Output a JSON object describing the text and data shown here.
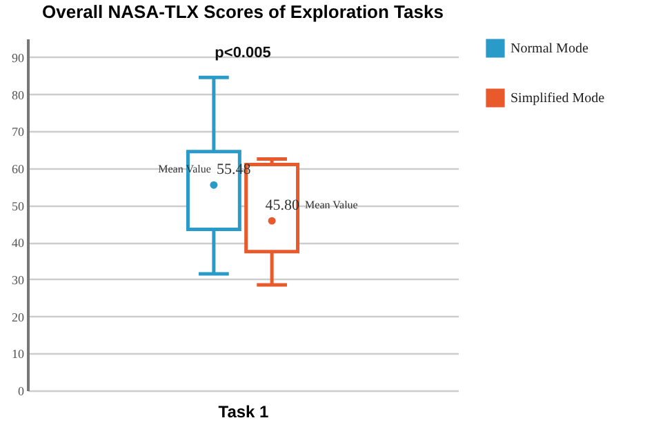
{
  "chart_data": {
    "type": "box",
    "title": "Overall NASA-TLX Scores of Exploration Tasks",
    "categories": [
      "Task 1"
    ],
    "series": [
      {
        "name": "Normal Mode",
        "color": "#2a9ac9",
        "boxes": [
          {
            "low": 31.5,
            "q1": 43.5,
            "q3": 64.5,
            "high": 84.5,
            "mean": 55.48
          }
        ]
      },
      {
        "name": "Simplified Mode",
        "color": "#e8592b",
        "boxes": [
          {
            "low": 28.5,
            "q1": 37.5,
            "q3": 61,
            "high": 62.5,
            "mean": 45.8
          }
        ]
      }
    ],
    "ylim": [
      0,
      95
    ],
    "yticks": [
      0,
      10,
      20,
      30,
      40,
      50,
      60,
      70,
      80,
      90
    ],
    "grid": "y",
    "legend": "top right",
    "annotations": [
      "p<0.005",
      "Mean Value",
      "55.48",
      "45.80",
      "Mean Value"
    ]
  }
}
